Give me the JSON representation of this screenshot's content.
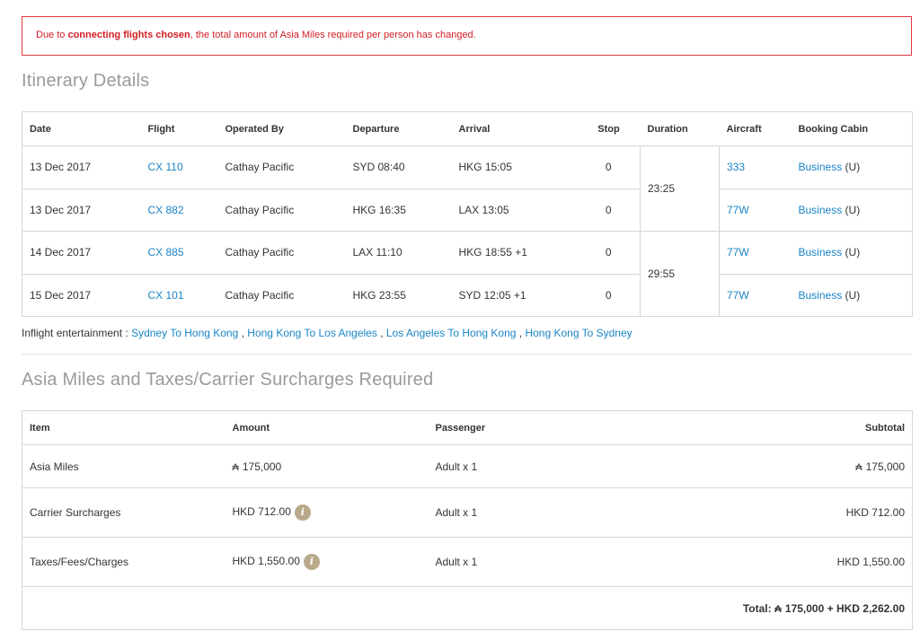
{
  "alert": {
    "prefix": "Due to ",
    "bold": "connecting flights chosen",
    "suffix": ", the total amount of Asia Miles required per person has changed."
  },
  "itinerary": {
    "title": "Itinerary Details",
    "headers": [
      "Date",
      "Flight",
      "Operated By",
      "Departure",
      "Arrival",
      "Stop",
      "Duration",
      "Aircraft",
      "Booking Cabin"
    ],
    "rows": [
      {
        "date": "13 Dec 2017",
        "flight": "CX 110",
        "operated_by": "Cathay Pacific",
        "departure": "SYD 08:40",
        "arrival": "HKG 15:05",
        "stop": "0",
        "aircraft": "333",
        "cabin": "Business",
        "cabin_code": "(U)"
      },
      {
        "date": "13 Dec 2017",
        "flight": "CX 882",
        "operated_by": "Cathay Pacific",
        "departure": "HKG 16:35",
        "arrival": "LAX 13:05",
        "stop": "0",
        "aircraft": "77W",
        "cabin": "Business",
        "cabin_code": "(U)"
      },
      {
        "date": "14 Dec 2017",
        "flight": "CX 885",
        "operated_by": "Cathay Pacific",
        "departure": "LAX 11:10",
        "arrival": "HKG 18:55 +1",
        "stop": "0",
        "aircraft": "77W",
        "cabin": "Business",
        "cabin_code": "(U)"
      },
      {
        "date": "15 Dec 2017",
        "flight": "CX 101",
        "operated_by": "Cathay Pacific",
        "departure": "HKG 23:55",
        "arrival": "SYD 12:05 +1",
        "stop": "0",
        "aircraft": "77W",
        "cabin": "Business",
        "cabin_code": "(U)"
      }
    ],
    "durations": [
      "23:25",
      "29:55"
    ]
  },
  "entertainment": {
    "label": "Inflight entertainment : ",
    "links": [
      "Sydney To Hong Kong",
      "Hong Kong To Los Angeles",
      "Los Angeles To Hong Kong",
      "Hong Kong To Sydney"
    ],
    "separator": " , "
  },
  "miles": {
    "title": "Asia Miles and Taxes/Carrier Surcharges Required",
    "headers": {
      "item": "Item",
      "amount": "Amount",
      "passenger": "Passenger",
      "subtotal": "Subtotal"
    },
    "rows": [
      {
        "item": "Asia Miles",
        "amount_symbol": "₳",
        "amount": "175,000",
        "passenger": "Adult x 1",
        "subtotal_symbol": "₳",
        "subtotal": "175,000"
      },
      {
        "item": "Carrier Surcharges",
        "amount": "HKD 712.00",
        "passenger": "Adult x 1",
        "subtotal": "HKD 712.00"
      },
      {
        "item": "Taxes/Fees/Charges",
        "amount": "HKD 1,550.00",
        "passenger": "Adult x 1",
        "subtotal": "HKD 1,550.00"
      }
    ],
    "total_label": "Total: ",
    "total_symbol": "₳",
    "total_value": "175,000 + HKD 2,262.00",
    "info_glyph": "i"
  },
  "colors": {
    "alert": "#d21e24",
    "link": "#1a84c5",
    "info_icon": "#b8a98a",
    "section_title": "#9a9a9a"
  }
}
